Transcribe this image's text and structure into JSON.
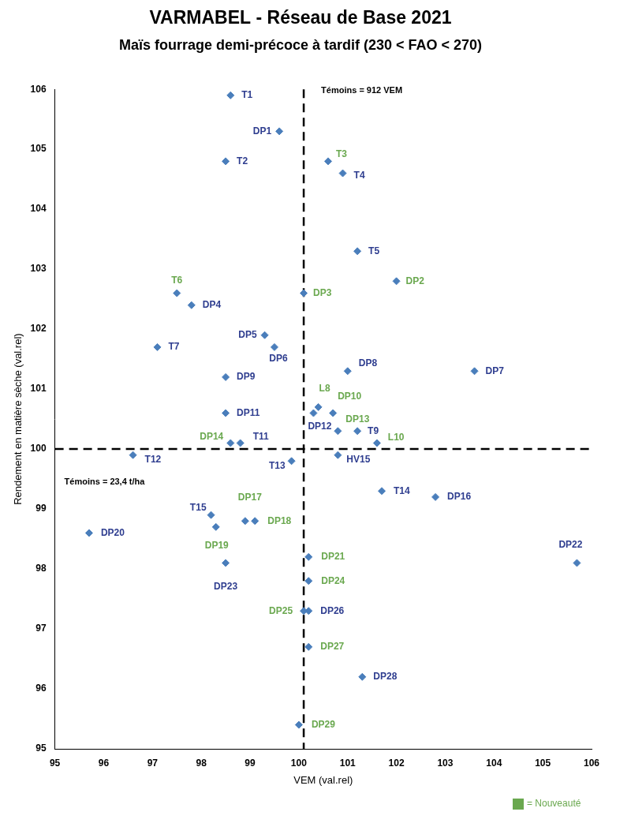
{
  "chart_data": {
    "type": "scatter",
    "title": "VARMABEL - Réseau de Base 2021",
    "subtitle": "Maïs fourrage demi-précoce à tardif (230 < FAO < 270)",
    "x_label": "VEM (val.rel)",
    "y_label": "Rendement en matière sèche (val.rel)",
    "xlim": [
      95,
      106
    ],
    "ylim": [
      95,
      106
    ],
    "xticks": [
      95,
      96,
      97,
      98,
      99,
      100,
      101,
      102,
      103,
      104,
      105,
      106
    ],
    "yticks": [
      95,
      96,
      97,
      98,
      99,
      100,
      101,
      102,
      103,
      104,
      105,
      106
    ],
    "grid": false,
    "marker": "diamond",
    "color": "#4a7ebb",
    "reference_lines": [
      {
        "axis": "x",
        "value": 100.1,
        "line_style": "dashed"
      },
      {
        "axis": "y",
        "value": 100,
        "line_style": "dashed"
      }
    ],
    "annotations": [
      {
        "text": "Témoins = 912 VEM"
      },
      {
        "text": "Témoins = 23,4 t/ha"
      }
    ],
    "legend_note": {
      "text": "= Nouveauté",
      "color": "#6aa84f"
    },
    "points": [
      {
        "label": "T1",
        "x": 98.6,
        "y": 105.9,
        "label_color": "#2e3d8f"
      },
      {
        "label": "DP1",
        "x": 99.6,
        "y": 105.3,
        "label_color": "#2e3d8f"
      },
      {
        "label": "T2",
        "x": 98.5,
        "y": 104.8,
        "label_color": "#2e3d8f"
      },
      {
        "label": "T3",
        "x": 100.6,
        "y": 104.8,
        "label_color": "#6aa84f"
      },
      {
        "label": "T4",
        "x": 100.9,
        "y": 104.6,
        "label_color": "#2e3d8f"
      },
      {
        "label": "T5",
        "x": 101.2,
        "y": 103.3,
        "label_color": "#2e3d8f"
      },
      {
        "label": "T6",
        "x": 97.5,
        "y": 102.6,
        "label_color": "#6aa84f"
      },
      {
        "label": "DP4",
        "x": 97.8,
        "y": 102.4,
        "label_color": "#2e3d8f"
      },
      {
        "label": "DP3",
        "x": 100.1,
        "y": 102.6,
        "label_color": "#6aa84f"
      },
      {
        "label": "DP2",
        "x": 102.0,
        "y": 102.8,
        "label_color": "#6aa84f"
      },
      {
        "label": "DP5",
        "x": 99.3,
        "y": 101.9,
        "label_color": "#2e3d8f"
      },
      {
        "label": "DP6",
        "x": 99.5,
        "y": 101.7,
        "label_color": "#2e3d8f"
      },
      {
        "label": "T7",
        "x": 97.1,
        "y": 101.7,
        "label_color": "#2e3d8f"
      },
      {
        "label": "DP8",
        "x": 101.0,
        "y": 101.3,
        "label_color": "#2e3d8f"
      },
      {
        "label": "DP7",
        "x": 103.6,
        "y": 101.3,
        "label_color": "#2e3d8f"
      },
      {
        "label": "DP9",
        "x": 98.5,
        "y": 101.2,
        "label_color": "#2e3d8f"
      },
      {
        "label": "DP12",
        "x": 100.3,
        "y": 100.6,
        "label_color": "#2e3d8f"
      },
      {
        "label": "L8",
        "x": 100.4,
        "y": 100.7,
        "label_color": "#6aa84f"
      },
      {
        "label": "DP10",
        "x": 100.7,
        "y": 100.6,
        "label_color": "#6aa84f"
      },
      {
        "label": "DP13",
        "x": 100.8,
        "y": 100.3,
        "label_color": "#6aa84f"
      },
      {
        "label": "T9",
        "x": 101.2,
        "y": 100.3,
        "label_color": "#2e3d8f"
      },
      {
        "label": "L10",
        "x": 101.6,
        "y": 100.1,
        "label_color": "#6aa84f"
      },
      {
        "label": "DP11",
        "x": 98.5,
        "y": 100.6,
        "label_color": "#2e3d8f"
      },
      {
        "label": "DP14",
        "x": 98.6,
        "y": 100.1,
        "label_color": "#6aa84f"
      },
      {
        "label": "T11",
        "x": 98.8,
        "y": 100.1,
        "label_color": "#2e3d8f"
      },
      {
        "label": "T12",
        "x": 96.6,
        "y": 99.9,
        "label_color": "#2e3d8f"
      },
      {
        "label": "T13",
        "x": 99.85,
        "y": 99.8,
        "label_color": "#2e3d8f"
      },
      {
        "label": "HV15",
        "x": 100.8,
        "y": 99.9,
        "label_color": "#2e3d8f"
      },
      {
        "label": "T14",
        "x": 101.7,
        "y": 99.3,
        "label_color": "#2e3d8f"
      },
      {
        "label": "DP16",
        "x": 102.8,
        "y": 99.2,
        "label_color": "#2e3d8f"
      },
      {
        "label": "T15",
        "x": 98.2,
        "y": 98.9,
        "label_color": "#2e3d8f"
      },
      {
        "label": "DP19",
        "x": 98.3,
        "y": 98.7,
        "label_color": "#6aa84f"
      },
      {
        "label": "DP17",
        "x": 98.9,
        "y": 98.8,
        "label_color": "#6aa84f"
      },
      {
        "label": "DP18",
        "x": 99.1,
        "y": 98.8,
        "label_color": "#6aa84f"
      },
      {
        "label": "DP20",
        "x": 95.7,
        "y": 98.6,
        "label_color": "#2e3d8f"
      },
      {
        "label": "DP23",
        "x": 98.5,
        "y": 98.1,
        "label_color": "#2e3d8f"
      },
      {
        "label": "DP21",
        "x": 100.2,
        "y": 98.2,
        "label_color": "#6aa84f"
      },
      {
        "label": "DP22",
        "x": 105.7,
        "y": 98.1,
        "label_color": "#2e3d8f"
      },
      {
        "label": "DP24",
        "x": 100.2,
        "y": 97.8,
        "label_color": "#6aa84f"
      },
      {
        "label": "DP25",
        "x": 100.1,
        "y": 97.3,
        "label_color": "#6aa84f"
      },
      {
        "label": "DP26",
        "x": 100.2,
        "y": 97.3,
        "label_color": "#2e3d8f"
      },
      {
        "label": "DP27",
        "x": 100.2,
        "y": 96.7,
        "label_color": "#6aa84f"
      },
      {
        "label": "DP28",
        "x": 101.3,
        "y": 96.2,
        "label_color": "#2e3d8f"
      },
      {
        "label": "DP29",
        "x": 100.0,
        "y": 95.4,
        "label_color": "#6aa84f"
      }
    ]
  }
}
